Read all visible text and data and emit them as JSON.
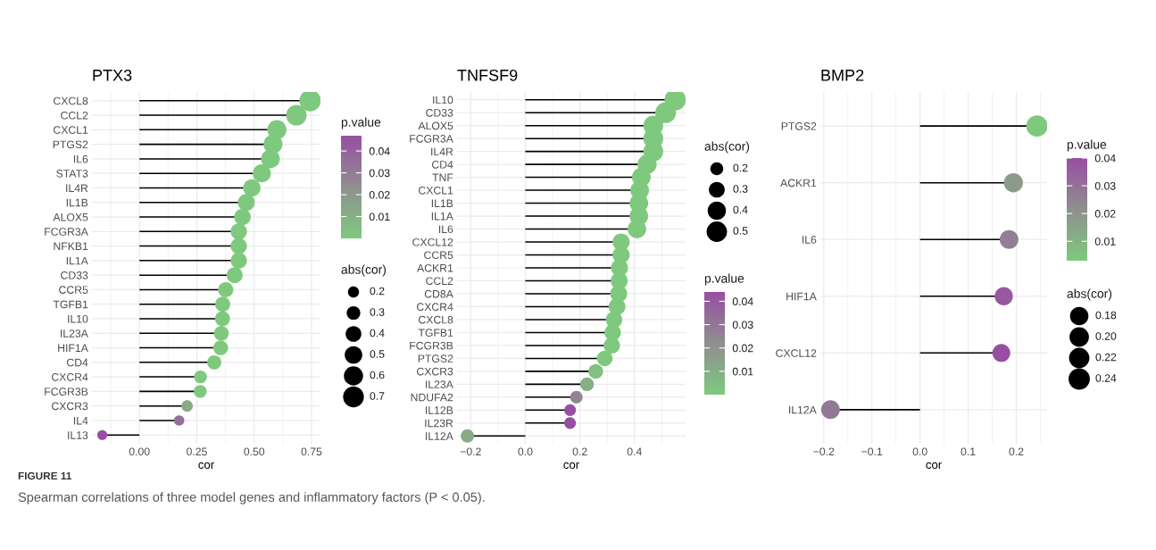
{
  "chart_data": [
    {
      "type": "lollipop",
      "orientation": "horizontal",
      "title": "PTX3",
      "xlabel": "cor",
      "categories": [
        "CXCL8",
        "CCL2",
        "CXCL1",
        "PTGS2",
        "IL6",
        "STAT3",
        "IL4R",
        "IL1B",
        "ALOX5",
        "FCGR3A",
        "NFKB1",
        "IL1A",
        "CD33",
        "CCR5",
        "TGFB1",
        "IL10",
        "IL23A",
        "HIF1A",
        "CD4",
        "CXCR4",
        "FCGR3B",
        "CXCR3",
        "IL4",
        "IL13"
      ],
      "values": [
        0.744,
        0.684,
        0.599,
        0.582,
        0.571,
        0.533,
        0.49,
        0.466,
        0.449,
        0.433,
        0.433,
        0.433,
        0.415,
        0.376,
        0.363,
        0.362,
        0.357,
        0.354,
        0.326,
        0.266,
        0.265,
        0.208,
        0.173,
        -0.162
      ],
      "sizes": [
        0.744,
        0.684,
        0.599,
        0.582,
        0.571,
        0.533,
        0.49,
        0.466,
        0.449,
        0.433,
        0.433,
        0.433,
        0.415,
        0.376,
        0.363,
        0.362,
        0.357,
        0.354,
        0.326,
        0.266,
        0.265,
        0.208,
        0.173,
        0.162
      ],
      "cvalues": [
        0,
        0,
        0,
        0,
        0,
        0,
        0,
        0,
        0,
        0,
        0,
        0,
        0,
        0,
        0,
        0,
        0,
        0,
        0,
        0,
        0,
        0.012,
        0.035,
        0.047
      ],
      "clim": [
        0,
        0.047
      ],
      "cticks": [
        0.01,
        0.02,
        0.03,
        0.04
      ],
      "clabel": "p.value",
      "legend_title": "abs(cor)",
      "size_legend": [
        0.2,
        0.3,
        0.4,
        0.5,
        0.6,
        0.7
      ],
      "xlim": [
        -0.207,
        0.789
      ],
      "xticks": [
        {
          "value": -0.125,
          "label": null
        },
        {
          "value": 0,
          "label": "0.00"
        },
        {
          "value": 0.125,
          "label": null
        },
        0.25,
        {
          "value": 0.375,
          "label": null
        },
        {
          "value": 0.5,
          "label": "0.50"
        },
        {
          "value": 0.625,
          "label": null
        },
        0.75
      ],
      "grid": true,
      "marker": "circle"
    },
    {
      "type": "lollipop",
      "orientation": "horizontal",
      "title": "TNFSF9",
      "xlabel": "cor",
      "categories": [
        "IL10",
        "CD33",
        "ALOX5",
        "FCGR3A",
        "IL4R",
        "CD4",
        "TNF",
        "CXCL1",
        "IL1B",
        "IL1A",
        "IL6",
        "CXCL12",
        "CCR5",
        "ACKR1",
        "CCL2",
        "CD8A",
        "CXCR4",
        "CXCL8",
        "TGFB1",
        "FCGR3B",
        "PTGS2",
        "CXCR3",
        "IL23A",
        "NDUFA2",
        "IL12B",
        "IL23R",
        "IL12A"
      ],
      "values": [
        0.549,
        0.514,
        0.469,
        0.469,
        0.469,
        0.446,
        0.425,
        0.419,
        0.416,
        0.416,
        0.409,
        0.351,
        0.351,
        0.345,
        0.344,
        0.342,
        0.336,
        0.325,
        0.32,
        0.317,
        0.291,
        0.258,
        0.226,
        0.187,
        0.164,
        0.164,
        -0.212
      ],
      "sizes": [
        0.549,
        0.514,
        0.469,
        0.469,
        0.469,
        0.446,
        0.425,
        0.419,
        0.416,
        0.416,
        0.409,
        0.351,
        0.351,
        0.345,
        0.344,
        0.342,
        0.336,
        0.325,
        0.32,
        0.317,
        0.291,
        0.258,
        0.226,
        0.187,
        0.164,
        0.164,
        0.212
      ],
      "cvalues": [
        0,
        0,
        0,
        0,
        0,
        0,
        0,
        0,
        0,
        0,
        0,
        0,
        0,
        0,
        0,
        0,
        0,
        0,
        0,
        0,
        0,
        0.003,
        0.01,
        0.026,
        0.044,
        0.044,
        0.012
      ],
      "clim": [
        0,
        0.044
      ],
      "cticks": [
        0.01,
        0.02,
        0.03,
        0.04
      ],
      "clabel": "p.value",
      "legend_title": "abs(cor)",
      "size_legend": [
        0.2,
        0.3,
        0.4,
        0.5
      ],
      "xlim": [
        -0.25,
        0.587
      ],
      "xticks": [
        {
          "value": -0.2,
          "label": "−0.2"
        },
        {
          "value": -0.1,
          "label": null
        },
        {
          "value": 0,
          "label": "0.0"
        },
        {
          "value": 0.1,
          "label": null
        },
        0.2,
        {
          "value": 0.3,
          "label": null
        },
        0.4,
        {
          "value": 0.5,
          "label": null
        }
      ],
      "grid": true,
      "marker": "circle"
    },
    {
      "type": "lollipop",
      "orientation": "horizontal",
      "title": "BMP2",
      "xlabel": "cor",
      "categories": [
        "PTGS2",
        "ACKR1",
        "IL6",
        "HIF1A",
        "CXCL12",
        "IL12A"
      ],
      "values": [
        0.243,
        0.194,
        0.185,
        0.174,
        0.169,
        -0.186
      ],
      "sizes": [
        0.243,
        0.194,
        0.185,
        0.174,
        0.169,
        0.186
      ],
      "cvalues": [
        0.003,
        0.018,
        0.026,
        0.037,
        0.04,
        0.028
      ],
      "clim": [
        0.003,
        0.04
      ],
      "cticks": [
        0.01,
        0.02,
        0.03,
        0.04
      ],
      "clabel": "p.value",
      "legend_title": "abs(cor)",
      "size_legend": [
        0.18,
        {
          "value": 0.2,
          "label": "0.20"
        },
        0.22,
        0.24
      ],
      "xlim": [
        -0.207,
        0.264
      ],
      "xticks": [
        {
          "value": -0.2,
          "label": "−0.2"
        },
        {
          "value": -0.15,
          "label": null
        },
        {
          "value": -0.1,
          "label": "−0.1"
        },
        {
          "value": -0.05,
          "label": null
        },
        {
          "value": 0,
          "label": "0.0"
        },
        {
          "value": 0.05,
          "label": null
        },
        0.1,
        {
          "value": 0.15,
          "label": null
        },
        0.2,
        {
          "value": 0.25,
          "label": null
        }
      ],
      "grid": true,
      "marker": "circle"
    },
    {
      "type": "other",
      "annotations": [
        "FIGURE 11",
        "Spearman correlations of three model genes and inflammatory factors (P < 0.05)."
      ]
    }
  ]
}
